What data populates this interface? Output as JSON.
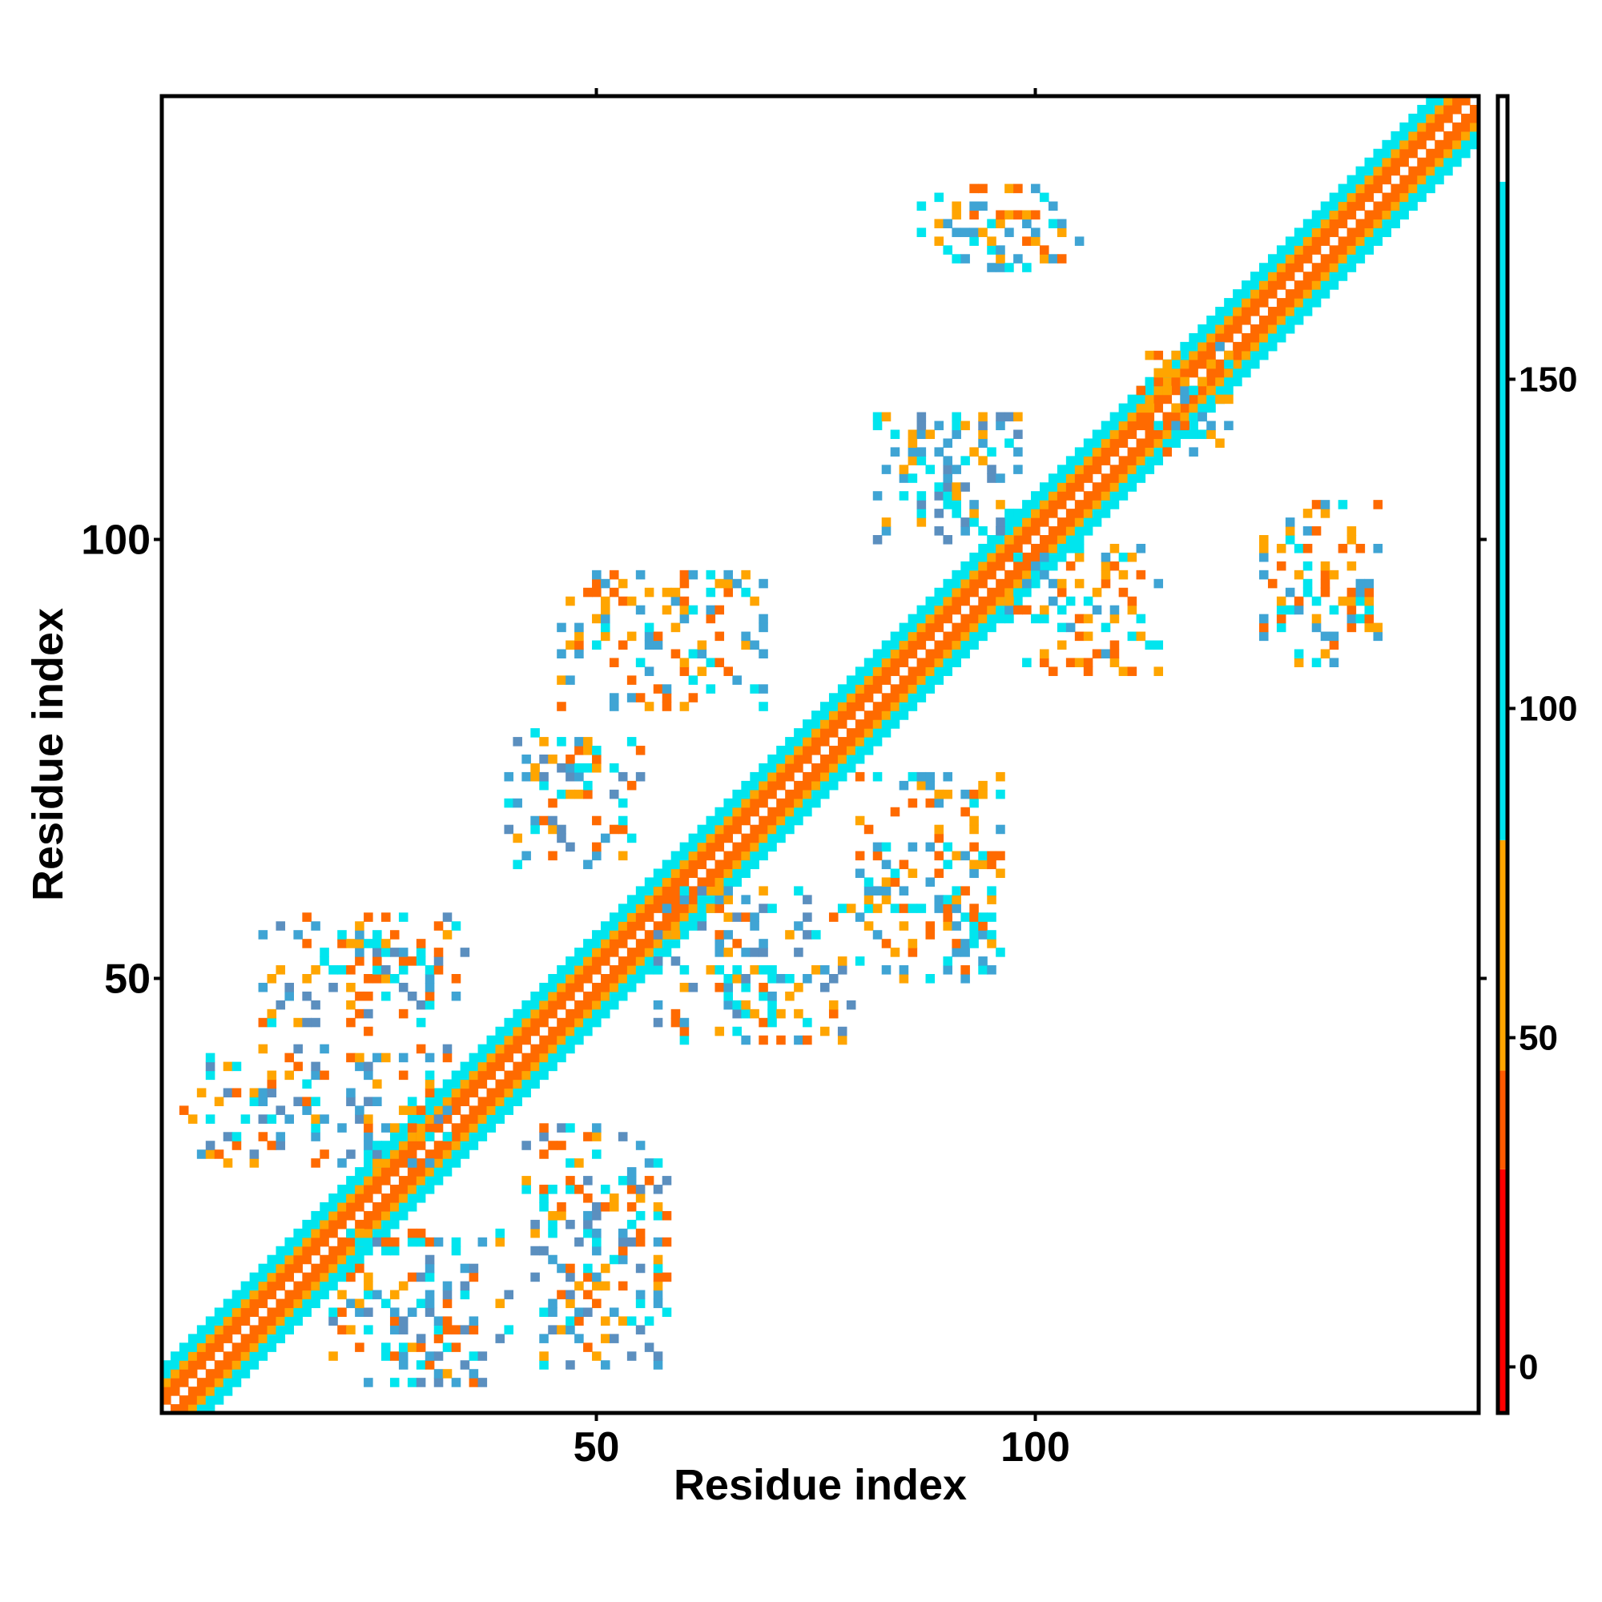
{
  "chart_data": {
    "type": "heatmap",
    "title": "",
    "xlabel": "Residue index",
    "ylabel": "Residue index",
    "xlim": [
      1,
      150
    ],
    "ylim": [
      1,
      150
    ],
    "x_ticks": [
      50,
      100
    ],
    "y_ticks": [
      50,
      100
    ],
    "colorbar": {
      "ticks": [
        0,
        50,
        100,
        150
      ],
      "range": [
        -7,
        193
      ],
      "bands": [
        {
          "from": -7,
          "to": 30,
          "color": "#ff0000"
        },
        {
          "from": 30,
          "to": 45,
          "color": "#ff5a00"
        },
        {
          "from": 45,
          "to": 80,
          "color": "#ffa500"
        },
        {
          "from": 80,
          "to": 180,
          "color": "#00e5ee"
        },
        {
          "from": 180,
          "to": 193,
          "color": "#ffffff"
        }
      ]
    },
    "cell_colors": {
      "r": "#ff1a00",
      "o": "#ff6a00",
      "a": "#ffa500",
      "c": "#00e5ee",
      "b": "#3fa4d4",
      "s": "#5b8fbf"
    },
    "diagonal": {
      "start": 1,
      "end": 150,
      "offsets": [
        {
          "d": 1,
          "v": "o"
        },
        {
          "d": 2,
          "v": "o"
        },
        {
          "d": 3,
          "v": "a"
        },
        {
          "d": 4,
          "v": "c"
        },
        {
          "d": 5,
          "v": "c"
        }
      ]
    },
    "contact_clusters": [
      {
        "x": [
          3,
          33
        ],
        "y": [
          29,
          42
        ],
        "values": [
          "b",
          "c",
          "a",
          "s",
          "o"
        ]
      },
      {
        "x": [
          12,
          35
        ],
        "y": [
          44,
          57
        ],
        "values": [
          "c",
          "a",
          "o",
          "s",
          "b"
        ]
      },
      {
        "x": [
          20,
          40
        ],
        "y": [
          4,
          21
        ],
        "values": [
          "b",
          "a",
          "c",
          "s",
          "o"
        ]
      },
      {
        "x": [
          42,
          58
        ],
        "y": [
          6,
          33
        ],
        "values": [
          "c",
          "a",
          "b",
          "s",
          "o"
        ]
      },
      {
        "x": [
          40,
          55
        ],
        "y": [
          63,
          78
        ],
        "values": [
          "c",
          "a",
          "b",
          "s",
          "o"
        ]
      },
      {
        "x": [
          46,
          69
        ],
        "y": [
          81,
          96
        ],
        "values": [
          "c",
          "a",
          "b",
          "o"
        ]
      },
      {
        "x": [
          57,
          79
        ],
        "y": [
          43,
          60
        ],
        "values": [
          "a",
          "c",
          "s",
          "o",
          "b"
        ]
      },
      {
        "x": [
          80,
          96
        ],
        "y": [
          50,
          73
        ],
        "values": [
          "a",
          "c",
          "b",
          "o"
        ]
      },
      {
        "x": [
          82,
          98
        ],
        "y": [
          100,
          114
        ],
        "values": [
          "c",
          "b",
          "a",
          "s"
        ]
      },
      {
        "x": [
          87,
          105
        ],
        "y": [
          131,
          140
        ],
        "values": [
          "c",
          "b",
          "a",
          "o"
        ]
      },
      {
        "x": [
          97,
          114
        ],
        "y": [
          85,
          99
        ],
        "values": [
          "c",
          "a",
          "b",
          "o"
        ]
      },
      {
        "x": [
          112,
          122
        ],
        "y": [
          110,
          122
        ],
        "values": [
          "c",
          "b",
          "a",
          "o"
        ]
      },
      {
        "x": [
          126,
          139
        ],
        "y": [
          86,
          104
        ],
        "values": [
          "a",
          "c",
          "o",
          "b"
        ]
      }
    ]
  }
}
